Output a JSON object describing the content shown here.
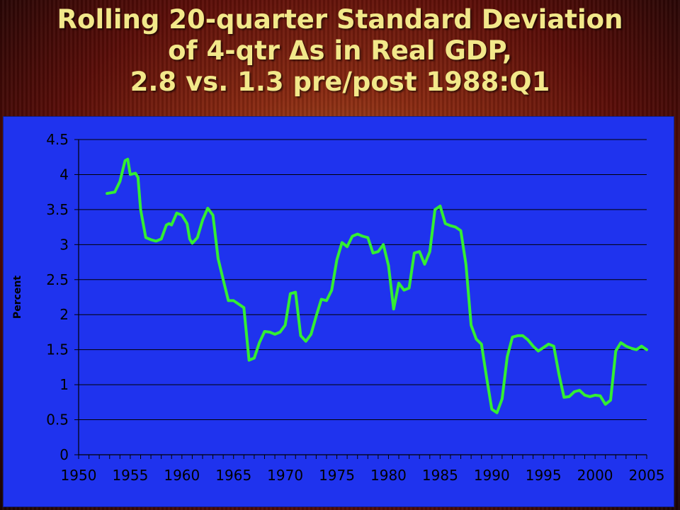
{
  "slide": {
    "title_lines": [
      "Rolling 20-quarter Standard Deviation",
      "of 4-qtr Δs in Real GDP,",
      "2.8 vs. 1.3 pre/post 1988:Q1"
    ]
  },
  "chart_data": {
    "type": "line",
    "title": "",
    "xlabel": "",
    "ylabel": "Percent",
    "xlim": [
      1950,
      2005
    ],
    "ylim": [
      0,
      4.5
    ],
    "x_ticks": [
      "1950",
      "1955",
      "1960",
      "1965",
      "1970",
      "1975",
      "1980",
      "1985",
      "1990",
      "1995",
      "2000",
      "2005"
    ],
    "y_ticks": [
      "0",
      "0.5",
      "1",
      "1.5",
      "2",
      "2.5",
      "3",
      "3.5",
      "4",
      "4.5"
    ],
    "grid": "horizontal",
    "legend": "none",
    "series": [
      {
        "name": "",
        "color": "#33ee33",
        "x": [
          1952.75,
          1953.5,
          1954.0,
          1954.5,
          1954.75,
          1955.0,
          1955.5,
          1955.75,
          1956.0,
          1956.5,
          1957.0,
          1957.5,
          1958.0,
          1958.5,
          1958.75,
          1959.0,
          1959.5,
          1960.0,
          1960.5,
          1960.75,
          1961.0,
          1961.5,
          1962.0,
          1962.5,
          1963.0,
          1963.5,
          1964.0,
          1964.5,
          1965.0,
          1965.5,
          1966.0,
          1966.5,
          1967.0,
          1967.5,
          1968.0,
          1968.5,
          1969.0,
          1969.5,
          1970.0,
          1970.5,
          1971.0,
          1971.5,
          1972.0,
          1972.5,
          1973.0,
          1973.5,
          1974.0,
          1974.5,
          1975.0,
          1975.5,
          1976.0,
          1976.5,
          1977.0,
          1977.5,
          1978.0,
          1978.5,
          1979.0,
          1979.5,
          1980.0,
          1980.5,
          1981.0,
          1981.5,
          1982.0,
          1982.5,
          1983.0,
          1983.5,
          1984.0,
          1984.5,
          1985.0,
          1985.5,
          1986.0,
          1986.5,
          1987.0,
          1987.5,
          1988.0,
          1988.5,
          1989.0,
          1989.5,
          1990.0,
          1990.5,
          1991.0,
          1991.5,
          1992.0,
          1992.5,
          1993.0,
          1993.5,
          1994.0,
          1994.5,
          1995.0,
          1995.5,
          1996.0,
          1996.5,
          1997.0,
          1997.5,
          1998.0,
          1998.5,
          1999.0,
          1999.5,
          2000.0,
          2000.5,
          2001.0,
          2001.5,
          2002.0,
          2002.5,
          2003.0,
          2003.5,
          2004.0,
          2004.5,
          2005.0
        ],
        "y": [
          3.73,
          3.75,
          3.9,
          4.2,
          4.22,
          4.0,
          4.02,
          3.96,
          3.5,
          3.1,
          3.07,
          3.05,
          3.08,
          3.28,
          3.3,
          3.28,
          3.45,
          3.42,
          3.3,
          3.08,
          3.02,
          3.1,
          3.35,
          3.52,
          3.42,
          2.8,
          2.5,
          2.2,
          2.2,
          2.15,
          2.1,
          1.35,
          1.38,
          1.6,
          1.76,
          1.75,
          1.72,
          1.75,
          1.85,
          2.3,
          2.32,
          1.7,
          1.62,
          1.72,
          1.98,
          2.22,
          2.2,
          2.35,
          2.78,
          3.03,
          2.97,
          3.12,
          3.15,
          3.12,
          3.1,
          2.88,
          2.9,
          3.0,
          2.7,
          2.08,
          2.45,
          2.35,
          2.38,
          2.88,
          2.9,
          2.72,
          2.9,
          3.5,
          3.55,
          3.3,
          3.27,
          3.25,
          3.2,
          2.72,
          1.85,
          1.65,
          1.58,
          1.1,
          0.65,
          0.6,
          0.8,
          1.4,
          1.68,
          1.7,
          1.7,
          1.64,
          1.55,
          1.48,
          1.53,
          1.58,
          1.55,
          1.15,
          0.82,
          0.83,
          0.9,
          0.92,
          0.85,
          0.83,
          0.85,
          0.84,
          0.72,
          0.78,
          1.48,
          1.6,
          1.55,
          1.52,
          1.5,
          1.55,
          1.5
        ]
      }
    ]
  }
}
